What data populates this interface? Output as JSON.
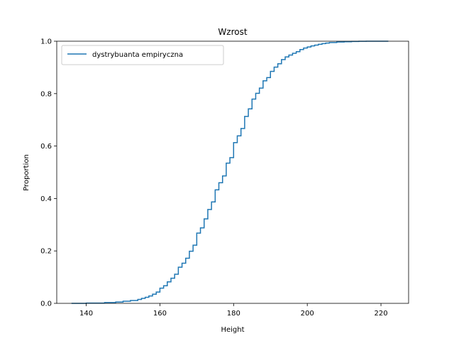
{
  "chart_data": {
    "type": "line",
    "drawstyle": "steps-post",
    "title": "Wzrost",
    "xlabel": "Height",
    "ylabel": "Proportion",
    "xlim": [
      132,
      227.5
    ],
    "ylim": [
      0,
      1
    ],
    "xticks": [
      140,
      160,
      180,
      200,
      220
    ],
    "yticks": [
      0.0,
      0.2,
      0.4,
      0.6,
      0.8,
      1.0
    ],
    "xtick_labels": [
      "140",
      "160",
      "180",
      "200",
      "220"
    ],
    "ytick_labels": [
      "0.0",
      "0.2",
      "0.4",
      "0.6",
      "0.8",
      "1.0"
    ],
    "grid": false,
    "legend": {
      "position": "upper-left"
    },
    "colors": {
      "series": "#1f77b4",
      "axis": "#000000"
    },
    "series": [
      {
        "name": "dystrybuanta empiryczna",
        "x": [
          136,
          140,
          145,
          148,
          150,
          152,
          154,
          155,
          156,
          157,
          158,
          159,
          160,
          161,
          162,
          163,
          164,
          165,
          166,
          167,
          168,
          169,
          170,
          171,
          172,
          173,
          174,
          175,
          176,
          177,
          178,
          179,
          180,
          181,
          182,
          183,
          184,
          185,
          186,
          187,
          188,
          189,
          190,
          191,
          192,
          193,
          194,
          195,
          196,
          197,
          198,
          199,
          200,
          201,
          202,
          203,
          204,
          205,
          206,
          208,
          210,
          212,
          214,
          216,
          218,
          222
        ],
        "y": [
          0.0,
          0.001,
          0.003,
          0.005,
          0.008,
          0.011,
          0.015,
          0.019,
          0.023,
          0.028,
          0.035,
          0.043,
          0.058,
          0.067,
          0.082,
          0.096,
          0.111,
          0.138,
          0.153,
          0.172,
          0.199,
          0.222,
          0.268,
          0.288,
          0.322,
          0.358,
          0.387,
          0.433,
          0.46,
          0.486,
          0.535,
          0.556,
          0.613,
          0.639,
          0.667,
          0.713,
          0.742,
          0.779,
          0.801,
          0.821,
          0.849,
          0.861,
          0.885,
          0.901,
          0.914,
          0.93,
          0.94,
          0.947,
          0.954,
          0.96,
          0.968,
          0.974,
          0.978,
          0.982,
          0.985,
          0.988,
          0.991,
          0.993,
          0.995,
          0.997,
          0.998,
          0.999,
          0.9995,
          1.0,
          1.0,
          1.0
        ]
      }
    ]
  }
}
